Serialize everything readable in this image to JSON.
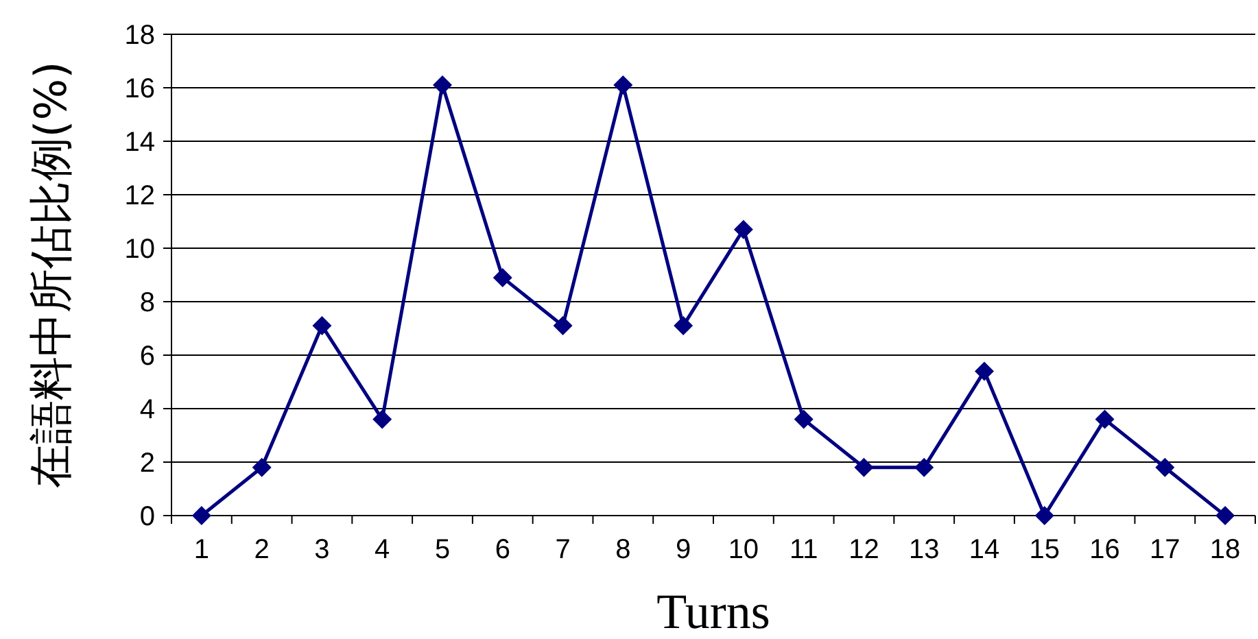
{
  "chart_data": {
    "type": "line",
    "xlabel": "Turns",
    "ylabel": "在語料中所佔比例(%)",
    "categories": [
      "1",
      "2",
      "3",
      "4",
      "5",
      "6",
      "7",
      "8",
      "9",
      "10",
      "11",
      "12",
      "13",
      "14",
      "15",
      "16",
      "17",
      "18"
    ],
    "values": [
      0,
      1.8,
      7.1,
      3.6,
      16.1,
      8.9,
      7.1,
      16.1,
      7.1,
      10.7,
      3.6,
      1.8,
      1.8,
      5.4,
      0,
      3.6,
      1.8,
      0
    ],
    "color": "#000080",
    "ylim": [
      0,
      18
    ],
    "yticks": [
      0,
      2,
      4,
      6,
      8,
      10,
      12,
      14,
      16,
      18
    ],
    "grid": "y",
    "marker": "diamond",
    "line_style": "solid"
  }
}
